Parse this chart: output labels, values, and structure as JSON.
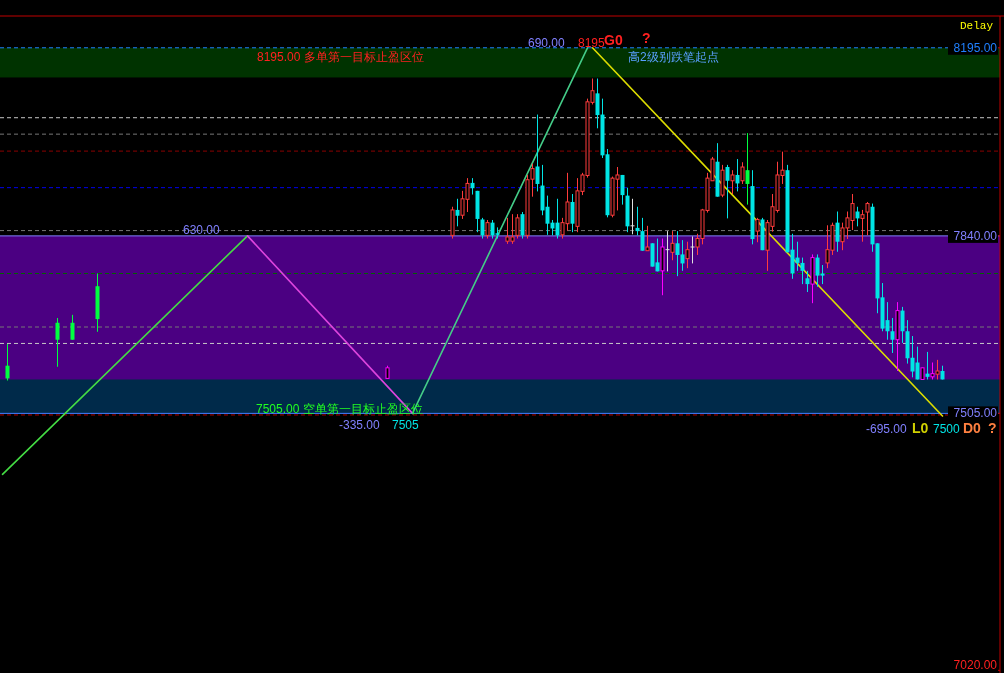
{
  "chart_data": {
    "type": "candlestick",
    "tick_labels": "y",
    "categories": [
      null,
      null,
      null,
      null,
      null,
      null,
      null,
      null,
      null,
      null,
      null,
      null,
      null,
      null,
      null,
      null,
      null,
      null,
      null,
      null,
      null,
      null,
      null,
      null,
      null,
      null,
      null,
      null,
      null,
      null,
      null,
      null,
      null,
      null,
      null,
      null,
      null,
      null,
      null,
      null,
      null,
      null,
      null,
      null,
      null,
      null,
      null,
      null,
      null,
      null,
      null,
      null,
      null,
      null,
      null,
      null,
      null,
      null,
      null,
      null,
      null,
      null,
      null,
      null,
      null,
      null,
      null,
      null,
      null,
      null,
      null,
      null,
      null,
      null,
      null,
      null,
      null,
      null,
      null,
      null,
      null,
      null,
      null,
      null,
      null,
      null,
      null,
      null,
      null,
      null,
      null,
      null,
      null,
      null,
      null,
      null,
      null,
      null,
      null,
      null,
      null,
      null,
      null,
      null,
      null,
      null,
      null,
      null,
      null,
      null,
      null,
      null,
      null,
      null,
      null,
      null,
      null,
      null,
      null,
      null,
      null,
      null,
      null,
      null,
      null,
      null,
      null,
      null,
      null,
      null,
      null,
      null,
      null,
      null,
      null,
      null,
      null,
      null,
      null,
      null,
      null,
      null,
      null,
      null,
      null,
      null,
      null,
      null,
      null,
      null,
      null,
      null,
      null,
      null,
      null,
      null,
      null,
      null,
      null,
      null,
      null,
      null,
      null,
      null,
      null,
      null,
      null,
      null,
      null,
      null,
      null,
      null,
      null,
      null,
      null,
      null,
      null,
      null,
      null,
      null,
      null,
      null,
      null,
      null,
      null,
      null,
      null,
      null,
      null,
      null,
      null,
      null,
      null,
      null,
      null,
      null,
      null,
      null,
      null,
      null
    ],
    "ohlc": [
      null,
      [
        7595,
        7636,
        7567,
        7571
      ],
      null,
      null,
      null,
      null,
      null,
      null,
      null,
      null,
      null,
      [
        7676,
        7685,
        7593,
        7644
      ],
      null,
      null,
      [
        7676,
        7691,
        7644,
        7644
      ],
      null,
      null,
      null,
      null,
      [
        7745,
        7769,
        7659,
        7683
      ],
      null,
      null,
      null,
      null,
      null,
      null,
      null,
      null,
      null,
      null,
      null,
      null,
      null,
      null,
      null,
      null,
      null,
      null,
      null,
      null,
      null,
      null,
      null,
      null,
      null,
      null,
      null,
      null,
      null,
      null,
      null,
      null,
      null,
      null,
      null,
      null,
      null,
      null,
      null,
      null,
      null,
      null,
      null,
      null,
      null,
      null,
      null,
      null,
      null,
      null,
      null,
      null,
      null,
      null,
      null,
      null,
      null,
      [
        7571,
        7595,
        7571,
        7591
      ],
      null,
      null,
      null,
      null,
      null,
      null,
      null,
      null,
      null,
      null,
      null,
      null,
      [
        7841,
        7895,
        7835,
        7889
      ],
      [
        7889,
        7910,
        7858,
        7878
      ],
      [
        7879,
        7925,
        7872,
        7910
      ],
      [
        7909,
        7949,
        7885,
        7939
      ],
      [
        7940,
        7949,
        7918,
        7930
      ],
      [
        7925,
        7925,
        7847,
        7872
      ],
      [
        7871,
        7874,
        7835,
        7841
      ],
      [
        7841,
        7870,
        7835,
        7865
      ],
      [
        7865,
        7870,
        7835,
        7841
      ],
      [
        7845,
        7856,
        7835,
        7842
      ],
      null,
      [
        7830,
        7874,
        7825,
        7838
      ],
      [
        7830,
        7881,
        7825,
        7838
      ],
      [
        7841,
        7881,
        7835,
        7874
      ],
      [
        7881,
        7885,
        7835,
        7841
      ],
      [
        7841,
        7955,
        7835,
        7946
      ],
      [
        7947,
        7976,
        7914,
        7967
      ],
      [
        7971,
        8069,
        7924,
        7938
      ],
      [
        7935,
        7974,
        7879,
        7888
      ],
      [
        7895,
        7916,
        7842,
        7863
      ],
      [
        7865,
        7870,
        7841,
        7854
      ],
      [
        7865,
        7910,
        7835,
        7841
      ],
      [
        7842,
        7874,
        7835,
        7865
      ],
      [
        7863,
        7959,
        7850,
        7904
      ],
      [
        7904,
        7919,
        7847,
        7863
      ],
      [
        7858,
        7949,
        7847,
        7925
      ],
      [
        7924,
        7959,
        7917,
        7955
      ],
      [
        7954,
        8099,
        7950,
        8093
      ],
      [
        8092,
        8137,
        8088,
        8114
      ],
      [
        8109,
        8137,
        8043,
        8068
      ],
      [
        8069,
        8099,
        7987,
        7992
      ],
      [
        7994,
        8004,
        7875,
        7879
      ],
      [
        7879,
        7952,
        7875,
        7949
      ],
      [
        7947,
        7970,
        7888,
        7955
      ],
      [
        7955,
        7955,
        7899,
        7917
      ],
      [
        7916,
        7931,
        7847,
        7858
      ],
      [
        7859,
        7910,
        7843,
        7859
      ],
      [
        7855,
        7895,
        7841,
        7849
      ],
      [
        7849,
        7874,
        7812,
        7812
      ],
      [
        7812,
        7859,
        7812,
        7819
      ],
      [
        7826,
        7826,
        7782,
        7782
      ],
      [
        7790,
        7835,
        7773,
        7773
      ],
      [
        7774,
        7835,
        7728,
        7819
      ],
      [
        7814,
        7849,
        7773,
        7814
      ],
      [
        7809,
        7849,
        7794,
        7826
      ],
      [
        7826,
        7849,
        7764,
        7804
      ],
      [
        7805,
        7832,
        7774,
        7788
      ],
      [
        7797,
        7829,
        7779,
        7814
      ],
      [
        7819,
        7839,
        7788,
        7819
      ],
      [
        7819,
        7844,
        7804,
        7835
      ],
      [
        7835,
        7891,
        7824,
        7889
      ],
      [
        7888,
        7959,
        7884,
        7949
      ],
      [
        7944,
        7989,
        7944,
        7985
      ],
      [
        7980,
        8015,
        7914,
        7914
      ],
      [
        7917,
        7974,
        7913,
        7964
      ],
      [
        7970,
        7974,
        7873,
        7944
      ],
      [
        7944,
        7964,
        7919,
        7955
      ],
      [
        7955,
        7985,
        7924,
        7939
      ],
      [
        7944,
        7979,
        7938,
        7970
      ],
      [
        7964,
        8034,
        7899,
        7938
      ],
      [
        7934,
        7964,
        7824,
        7834
      ],
      [
        7849,
        7874,
        7828,
        7871
      ],
      [
        7871,
        7874,
        7813,
        7813
      ],
      [
        7813,
        7870,
        7774,
        7865
      ],
      [
        7858,
        7919,
        7848,
        7895
      ],
      [
        7888,
        7980,
        7884,
        7955
      ],
      [
        7954,
        7999,
        7938,
        7964
      ],
      [
        7964,
        7974,
        7809,
        7809
      ],
      [
        7814,
        7844,
        7759,
        7769
      ],
      [
        7799,
        7829,
        7774,
        7789
      ],
      [
        7789,
        7799,
        7749,
        7774
      ],
      [
        7760,
        7774,
        7734,
        7749
      ],
      [
        7749,
        7805,
        7713,
        7799
      ],
      [
        7799,
        7805,
        7744,
        7765
      ],
      [
        7769,
        7785,
        7749,
        7765
      ],
      [
        7789,
        7860,
        7779,
        7814
      ],
      [
        7813,
        7865,
        7804,
        7860
      ],
      [
        7865,
        7886,
        7810,
        7829
      ],
      [
        7829,
        7865,
        7813,
        7855
      ],
      [
        7855,
        7886,
        7834,
        7874
      ],
      [
        7869,
        7919,
        7851,
        7901
      ],
      [
        7886,
        7895,
        7858,
        7873
      ],
      [
        7873,
        7889,
        7829,
        7880
      ],
      [
        7885,
        7904,
        7841,
        7901
      ],
      [
        7895,
        7901,
        7810,
        7824
      ],
      [
        7826,
        7826,
        7694,
        7722
      ],
      [
        7724,
        7751,
        7660,
        7665
      ],
      [
        7681,
        7715,
        7644,
        7660
      ],
      [
        7660,
        7685,
        7619,
        7644
      ],
      [
        7644,
        7715,
        7585,
        7699
      ],
      [
        7699,
        7706,
        7638,
        7660
      ],
      [
        7660,
        7681,
        7599,
        7609
      ],
      [
        7610,
        7651,
        7573,
        7584
      ],
      [
        7601,
        7631,
        7569,
        7569
      ],
      [
        7569,
        7591,
        7569,
        7591
      ],
      [
        7580,
        7621,
        7569,
        7574
      ],
      [
        7574,
        7601,
        7569,
        7580
      ],
      [
        7579,
        7606,
        7569,
        7585
      ],
      [
        7585,
        7595,
        7569,
        7569
      ],
      null,
      null,
      null,
      null,
      null,
      null,
      null,
      null,
      null,
      null,
      null
    ],
    "colors": [
      null,
      "#00ff40",
      null,
      null,
      null,
      null,
      null,
      null,
      null,
      null,
      null,
      "#00ff40",
      null,
      null,
      "#00ff40",
      null,
      null,
      null,
      null,
      "#00ff40",
      null,
      null,
      null,
      null,
      null,
      null,
      null,
      null,
      null,
      null,
      null,
      null,
      null,
      null,
      null,
      null,
      null,
      null,
      null,
      null,
      null,
      null,
      null,
      null,
      null,
      null,
      null,
      null,
      null,
      null,
      null,
      null,
      null,
      null,
      null,
      null,
      null,
      null,
      null,
      null,
      null,
      null,
      null,
      null,
      null,
      null,
      null,
      null,
      null,
      null,
      null,
      null,
      null,
      null,
      null,
      null,
      null,
      "#ff00ff",
      null,
      null,
      null,
      null,
      null,
      null,
      null,
      null,
      null,
      null,
      null,
      null,
      "#ff3c3c",
      "#00e5e5",
      "#ff3c3c",
      "#ff3c3c",
      "#00e5e5",
      "#00e5e5",
      "#00e5e5",
      "#ff3c3c",
      "#00e5e5",
      "#00e5e5",
      null,
      "#ff3c3c",
      "#ff3c3c",
      "#ff3c3c",
      "#00e5e5",
      "#ff3c3c",
      "#ff3c3c",
      "#00e5e5",
      "#00e5e5",
      "#00e5e5",
      "#00e5e5",
      "#00e5e5",
      "#ff3c3c",
      "#ff3c3c",
      "#00e5e5",
      "#ff3c3c",
      "#ff3c3c",
      "#ff3c3c",
      "#ff3c3c",
      "#00e5e5",
      "#00e5e5",
      "#00e5e5",
      "#ff3c3c",
      "#ff3c3c",
      "#00e5e5",
      "#00e5e5",
      "#e0e0e0",
      "#00e5e5",
      "#00e5e5",
      "#ff3c3c",
      "#00e5e5",
      "#00e5e5",
      "#ff00ff",
      "#e0e0e0",
      "#ff3c3c",
      "#00e5e5",
      "#00e5e5",
      "#ff3c3c",
      "#e0e0e0",
      "#ff3c3c",
      "#ff3c3c",
      "#ff3c3c",
      "#ff3c3c",
      "#00e5e5",
      "#ff3c3c",
      "#00e5e5",
      "#ff3c3c",
      "#00e5e5",
      "#ff3c3c",
      "#00ff40",
      "#00e5e5",
      "#ff3c3c",
      "#00e5e5",
      "#ff3c3c",
      "#ff3c3c",
      "#ff3c3c",
      "#ff3c3c",
      "#00e5e5",
      "#00e5e5",
      "#00e5e5",
      "#00e5e5",
      "#00e5e5",
      "#ff00ff",
      "#00e5e5",
      "#00e5e5",
      "#ff3c3c",
      "#ff3c3c",
      "#00e5e5",
      "#ff3c3c",
      "#ff3c3c",
      "#ff3c3c",
      "#00e5e5",
      "#ff3c3c",
      "#ff3c3c",
      "#00e5e5",
      "#00e5e5",
      "#00e5e5",
      "#00e5e5",
      "#00e5e5",
      "#ff00ff",
      "#00e5e5",
      "#00e5e5",
      "#00e5e5",
      "#00e5e5",
      "#ff00ff",
      "#00e5e5",
      "#ff00ff",
      "#ff3c3c",
      "#00e5e5",
      null,
      null,
      null,
      null,
      null,
      null,
      null,
      null,
      null,
      null,
      null
    ],
    "series": [
      {
        "type": "line",
        "color": "#44dd44",
        "values": [
          7390,
          null,
          null,
          null,
          null,
          null,
          null,
          null,
          null,
          null,
          null,
          null,
          null,
          null,
          null,
          null,
          null,
          null,
          null,
          null,
          null,
          null,
          null,
          null,
          null,
          null,
          null,
          null,
          null,
          null,
          null,
          null,
          null,
          null,
          null,
          null,
          null,
          null,
          null,
          null,
          null,
          null,
          null,
          null,
          null,
          null,
          null,
          null,
          null,
          7840,
          null,
          null,
          null,
          null,
          null,
          null,
          null,
          null,
          null,
          null,
          null,
          null,
          null,
          null,
          null,
          null,
          null,
          null,
          null,
          null,
          null,
          null,
          null,
          null,
          null,
          null,
          null,
          null,
          null,
          null,
          null,
          null,
          null,
          null,
          null,
          null,
          null,
          null,
          null,
          null,
          null,
          null,
          null,
          null,
          null,
          null,
          null,
          null,
          null,
          null,
          null,
          null,
          null,
          null,
          null,
          null,
          null,
          null,
          null,
          null,
          null,
          null,
          null,
          null,
          null,
          null,
          null,
          null,
          null,
          null,
          null,
          null,
          null,
          null,
          null,
          null,
          null,
          null,
          null,
          null,
          null,
          null,
          null,
          null,
          null,
          null,
          null,
          null,
          null,
          null,
          null,
          null,
          null,
          null,
          null,
          null,
          null,
          null,
          null,
          null,
          null,
          null,
          null,
          null,
          null,
          null,
          null,
          null,
          null,
          null,
          null,
          null,
          null,
          null,
          null,
          null,
          null,
          null,
          null,
          null,
          null,
          null,
          null,
          null,
          null,
          null,
          null,
          null,
          null,
          null,
          null,
          null,
          null,
          null,
          null,
          null,
          null,
          null,
          null,
          null,
          null,
          null,
          null,
          null,
          null,
          null,
          null,
          null,
          null,
          null
        ]
      },
      {
        "type": "line",
        "color": "#dd44dd",
        "values": [
          null,
          null,
          null,
          null,
          null,
          null,
          null,
          null,
          null,
          null,
          null,
          null,
          null,
          null,
          null,
          null,
          null,
          null,
          null,
          null,
          null,
          null,
          null,
          null,
          null,
          null,
          null,
          null,
          null,
          null,
          null,
          null,
          null,
          null,
          null,
          null,
          null,
          null,
          null,
          null,
          null,
          null,
          null,
          null,
          null,
          null,
          null,
          null,
          null,
          7840,
          null,
          null,
          null,
          null,
          null,
          null,
          null,
          null,
          null,
          null,
          null,
          null,
          null,
          null,
          null,
          null,
          null,
          null,
          null,
          null,
          null,
          null,
          null,
          null,
          null,
          null,
          null,
          null,
          null,
          null,
          null,
          null,
          7505,
          null,
          null,
          null,
          null,
          null,
          null,
          null,
          null,
          null,
          null,
          null,
          null,
          null,
          null,
          null,
          null,
          null,
          null,
          null,
          null,
          null,
          null,
          null,
          null,
          null,
          null,
          null,
          null,
          null,
          null,
          null,
          null,
          null,
          null,
          null,
          null,
          null,
          null,
          null,
          null,
          null,
          null,
          null,
          null,
          null,
          null,
          null,
          null,
          null,
          null,
          null,
          null,
          null,
          null,
          null,
          null,
          null,
          null,
          null,
          null,
          null,
          null,
          null,
          null,
          null,
          null,
          null,
          null,
          null,
          null,
          null,
          null,
          null,
          null,
          null,
          null,
          null,
          null,
          null,
          null,
          null,
          null,
          null,
          null,
          null,
          null,
          null,
          null,
          null,
          null,
          null,
          null,
          null,
          null,
          null,
          null,
          null,
          null,
          null,
          null,
          null,
          null,
          null,
          null,
          null,
          null,
          null,
          null,
          null,
          null,
          null,
          null,
          null,
          null,
          null,
          null,
          null
        ]
      },
      {
        "type": "line",
        "color": "#44cc88",
        "values": [
          null,
          null,
          null,
          null,
          null,
          null,
          null,
          null,
          null,
          null,
          null,
          null,
          null,
          null,
          null,
          null,
          null,
          null,
          null,
          null,
          null,
          null,
          null,
          null,
          null,
          null,
          null,
          null,
          null,
          null,
          null,
          null,
          null,
          null,
          null,
          null,
          null,
          null,
          null,
          null,
          null,
          null,
          null,
          null,
          null,
          null,
          null,
          null,
          null,
          null,
          null,
          null,
          null,
          null,
          null,
          null,
          null,
          null,
          null,
          null,
          null,
          null,
          null,
          null,
          null,
          null,
          null,
          null,
          null,
          null,
          null,
          null,
          null,
          null,
          null,
          null,
          null,
          null,
          null,
          null,
          null,
          null,
          7505,
          null,
          null,
          null,
          null,
          null,
          null,
          null,
          null,
          null,
          null,
          null,
          null,
          null,
          null,
          null,
          null,
          null,
          null,
          null,
          null,
          null,
          null,
          null,
          null,
          null,
          null,
          null,
          null,
          null,
          null,
          null,
          null,
          null,
          null,
          8195,
          null,
          null,
          null,
          null,
          null,
          null,
          null,
          null,
          null,
          null,
          null,
          null,
          null,
          null,
          null,
          null,
          null,
          null,
          null,
          null,
          null,
          null,
          null,
          null,
          null,
          null,
          null,
          null,
          null,
          null,
          null,
          null,
          null,
          null,
          null,
          null,
          null,
          null,
          null,
          null,
          null,
          null,
          null,
          null,
          null,
          null,
          null,
          null,
          null,
          null,
          null,
          null,
          null,
          null,
          null,
          null,
          null,
          null,
          null,
          null,
          null,
          null,
          null,
          null,
          null,
          null,
          null,
          null,
          null,
          null,
          null,
          null,
          null,
          null,
          null,
          null,
          null,
          null,
          null,
          null,
          null,
          null
        ]
      },
      {
        "type": "line",
        "color": "#dddd00",
        "values": [
          null,
          null,
          null,
          null,
          null,
          null,
          null,
          null,
          null,
          null,
          null,
          null,
          null,
          null,
          null,
          null,
          null,
          null,
          null,
          null,
          null,
          null,
          null,
          null,
          null,
          null,
          null,
          null,
          null,
          null,
          null,
          null,
          null,
          null,
          null,
          null,
          null,
          null,
          null,
          null,
          null,
          null,
          null,
          null,
          null,
          null,
          null,
          null,
          null,
          null,
          null,
          null,
          null,
          null,
          null,
          null,
          null,
          null,
          null,
          null,
          null,
          null,
          null,
          null,
          null,
          null,
          null,
          null,
          null,
          null,
          null,
          null,
          null,
          null,
          null,
          null,
          null,
          null,
          null,
          null,
          null,
          null,
          null,
          null,
          null,
          null,
          null,
          null,
          null,
          null,
          null,
          null,
          null,
          null,
          null,
          null,
          null,
          null,
          null,
          null,
          null,
          null,
          null,
          null,
          null,
          null,
          null,
          null,
          null,
          null,
          null,
          null,
          null,
          null,
          null,
          null,
          null,
          null,
          8195,
          null,
          null,
          null,
          null,
          null,
          null,
          null,
          null,
          null,
          null,
          null,
          null,
          null,
          null,
          null,
          null,
          null,
          null,
          null,
          null,
          null,
          null,
          null,
          null,
          null,
          null,
          null,
          null,
          null,
          null,
          null,
          null,
          null,
          null,
          null,
          null,
          null,
          null,
          null,
          null,
          null,
          null,
          null,
          null,
          null,
          null,
          null,
          null,
          null,
          null,
          null,
          null,
          null,
          null,
          null,
          null,
          null,
          null,
          null,
          null,
          null,
          null,
          null,
          null,
          null,
          null,
          null,
          null,
          null,
          7500,
          null,
          null,
          null,
          null,
          null,
          null,
          null,
          null,
          null,
          null,
          null
        ]
      }
    ],
    "ylim": [
      7015,
      8255
    ],
    "yticks": [
      {
        "value": 8195,
        "label": "8195.00"
      },
      {
        "value": 7840,
        "label": "7840.00"
      },
      {
        "value": 7505,
        "label": "7505.00"
      },
      {
        "value": 7020,
        "label": "7020.00"
      }
    ],
    "bands": [
      {
        "axis": "y",
        "from": 7505,
        "to": 7840,
        "color": "#4b0082"
      },
      {
        "axis": "y",
        "from": 8139,
        "to": 8195,
        "color": "#003300"
      },
      {
        "axis": "y",
        "from": 7505,
        "to": 7569,
        "color": "#002a4a"
      }
    ],
    "ref_lines": [
      {
        "axis": "y",
        "value": 8195,
        "color": "#2080ff",
        "line_style": "dashed"
      },
      {
        "axis": "y",
        "value": 8063,
        "color": "#c8c8c8",
        "line_style": "dashed"
      },
      {
        "axis": "y",
        "value": 8032,
        "color": "#777777",
        "line_style": "dashed"
      },
      {
        "axis": "y",
        "value": 8000,
        "color": "#8b0000",
        "line_style": "dashed"
      },
      {
        "axis": "y",
        "value": 7931,
        "color": "#0000ee",
        "line_style": "dashed"
      },
      {
        "axis": "y",
        "value": 7850,
        "color": "#777777",
        "line_style": "dashed"
      },
      {
        "axis": "y",
        "value": 7840,
        "color": "#8080ff",
        "line_style": "solid"
      },
      {
        "axis": "y",
        "value": 7769,
        "color": "#006400",
        "line_style": "dashed"
      },
      {
        "axis": "y",
        "value": 7668,
        "color": "#777777",
        "line_style": "dashed"
      },
      {
        "axis": "y",
        "value": 7637,
        "color": "#c8c8c8",
        "line_style": "dashed"
      },
      {
        "axis": "y",
        "value": 7505,
        "color": "#4080ff",
        "line_style": "solid"
      },
      {
        "axis": "y",
        "value": 7502,
        "color": "#b00000",
        "line_style": "dashed"
      }
    ],
    "annotations": [
      "Delay",
      "8195.00 多单第一目标止盈区位",
      "690.00",
      "8195",
      "G0",
      "?",
      "高2级别跌笔起点",
      "630.00",
      "7505.00 空单第一目标止盈区位",
      "-335.00",
      "7505",
      "-695.00",
      "L0",
      "7500",
      "D0",
      "?"
    ]
  }
}
